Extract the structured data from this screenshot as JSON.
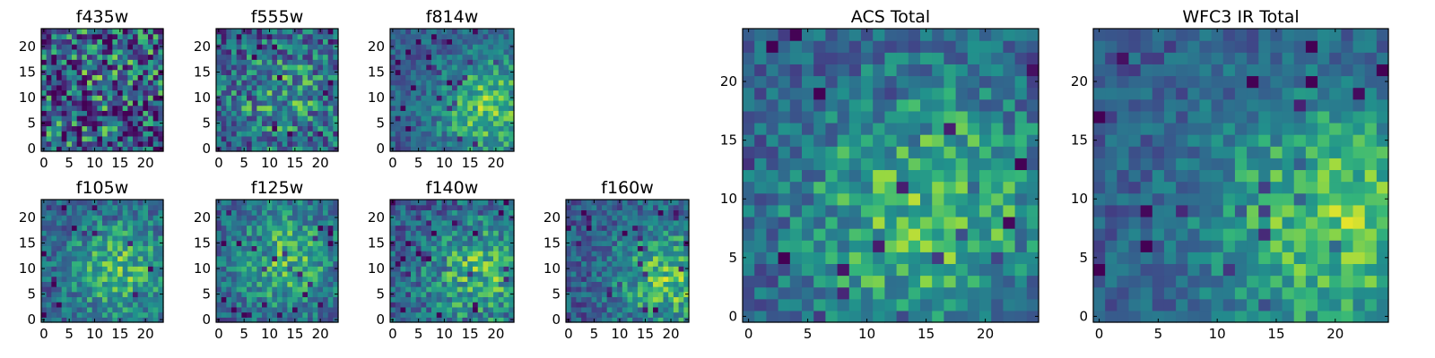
{
  "chart_data": {
    "type": "heatmap",
    "colormap": "viridis",
    "grid": false,
    "panels": [
      {
        "key": "f435w",
        "title": "f435w",
        "rows": 24,
        "cols": 24,
        "xticks": [
          "0",
          "5",
          "10",
          "15",
          "20"
        ],
        "yticks": [
          "0",
          "5",
          "10",
          "15",
          "20"
        ],
        "xlim": [
          0,
          24
        ],
        "ylim": [
          0,
          24
        ],
        "center": [
          12,
          12
        ],
        "structure": 0.15,
        "noise": 0.85,
        "seed": 11
      },
      {
        "key": "f555w",
        "title": "f555w",
        "rows": 24,
        "cols": 24,
        "xticks": [
          "0",
          "5",
          "10",
          "15",
          "20"
        ],
        "yticks": [
          "0",
          "5",
          "10",
          "15",
          "20"
        ],
        "xlim": [
          0,
          24
        ],
        "ylim": [
          0,
          24
        ],
        "center": [
          12,
          10
        ],
        "structure": 0.45,
        "noise": 0.6,
        "seed": 23
      },
      {
        "key": "f814w",
        "title": "f814w",
        "rows": 24,
        "cols": 24,
        "xticks": [
          "0",
          "5",
          "10",
          "15",
          "20"
        ],
        "yticks": [
          "0",
          "5",
          "10",
          "15",
          "20"
        ],
        "xlim": [
          0,
          24
        ],
        "ylim": [
          0,
          24
        ],
        "center": [
          19,
          8
        ],
        "structure": 0.8,
        "noise": 0.35,
        "seed": 37
      },
      {
        "key": "f105w",
        "title": "f105w",
        "rows": 24,
        "cols": 24,
        "xticks": [
          "0",
          "5",
          "10",
          "15",
          "20"
        ],
        "yticks": [
          "0",
          "5",
          "10",
          "15",
          "20"
        ],
        "xlim": [
          0,
          24
        ],
        "ylim": [
          0,
          24
        ],
        "center": [
          15,
          10
        ],
        "structure": 0.7,
        "noise": 0.4,
        "seed": 41
      },
      {
        "key": "f125w",
        "title": "f125w",
        "rows": 24,
        "cols": 24,
        "xticks": [
          "0",
          "5",
          "10",
          "15",
          "20"
        ],
        "yticks": [
          "0",
          "5",
          "10",
          "15",
          "20"
        ],
        "xlim": [
          0,
          24
        ],
        "ylim": [
          0,
          24
        ],
        "center": [
          13,
          12
        ],
        "structure": 0.7,
        "noise": 0.4,
        "seed": 53
      },
      {
        "key": "f140w",
        "title": "f140w",
        "rows": 24,
        "cols": 24,
        "xticks": [
          "0",
          "5",
          "10",
          "15",
          "20"
        ],
        "yticks": [
          "0",
          "5",
          "10",
          "15",
          "20"
        ],
        "xlim": [
          0,
          24
        ],
        "ylim": [
          0,
          24
        ],
        "center": [
          17,
          9
        ],
        "structure": 0.7,
        "noise": 0.45,
        "seed": 67
      },
      {
        "key": "f160w",
        "title": "f160w",
        "rows": 24,
        "cols": 24,
        "xticks": [
          "0",
          "5",
          "10",
          "15",
          "20"
        ],
        "yticks": [
          "0",
          "5",
          "10",
          "15",
          "20"
        ],
        "xlim": [
          0,
          24
        ],
        "ylim": [
          0,
          24
        ],
        "center": [
          20,
          8
        ],
        "structure": 0.75,
        "noise": 0.4,
        "seed": 79
      },
      {
        "key": "acs_total",
        "title": "ACS Total",
        "rows": 25,
        "cols": 25,
        "xticks": [
          "0",
          "5",
          "10",
          "15",
          "20"
        ],
        "yticks": [
          "0",
          "5",
          "10",
          "15",
          "20"
        ],
        "xlim": [
          0,
          25
        ],
        "ylim": [
          0,
          25
        ],
        "center": [
          15,
          9
        ],
        "structure": 0.75,
        "noise": 0.4,
        "seed": 97
      },
      {
        "key": "wfc3_ir_total",
        "title": "WFC3 IR Total",
        "rows": 25,
        "cols": 25,
        "xticks": [
          "0",
          "5",
          "10",
          "15",
          "20"
        ],
        "yticks": [
          "0",
          "5",
          "10",
          "15",
          "20"
        ],
        "xlim": [
          0,
          25
        ],
        "ylim": [
          0,
          25
        ],
        "center": [
          20,
          8
        ],
        "structure": 0.85,
        "noise": 0.3,
        "seed": 113
      }
    ]
  }
}
